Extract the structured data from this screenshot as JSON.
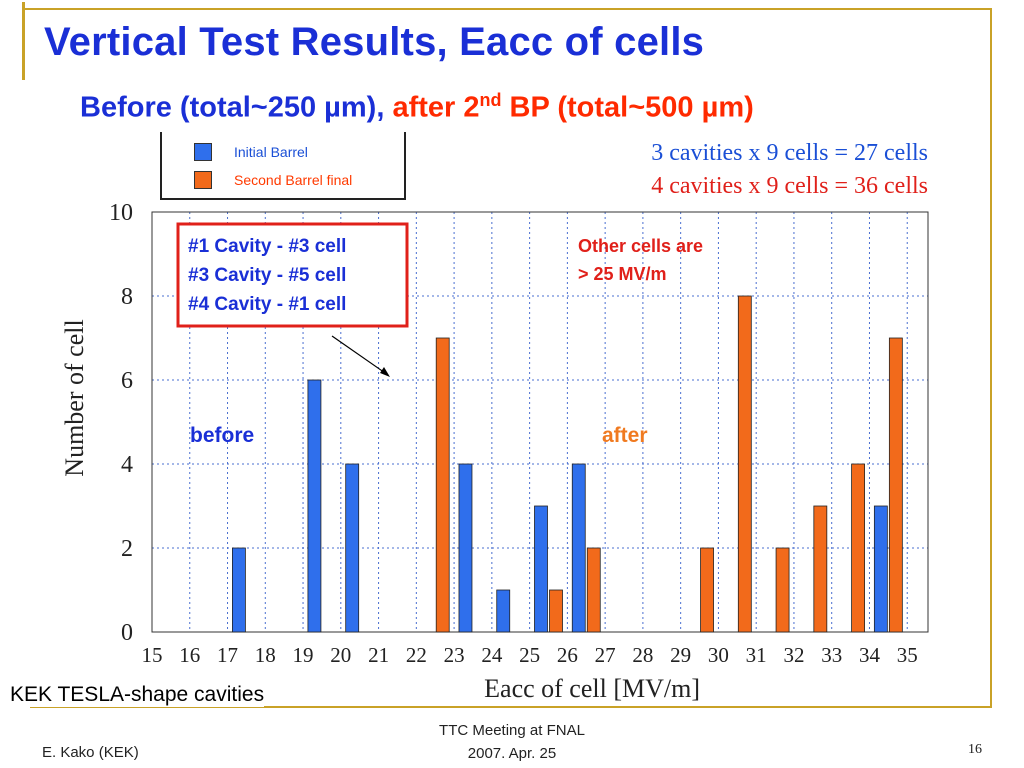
{
  "title": "Vertical Test Results,  Eacc of cells",
  "subtitle": {
    "part1": "Before (total~250 µm), ",
    "part2": "after 2",
    "sup": "nd",
    "part3": " BP (total~500 µm)"
  },
  "legend": [
    {
      "label": "Initial Barrel",
      "color": "#2f6fec"
    },
    {
      "label": "Second Barrel final",
      "color": "#f26a1b"
    }
  ],
  "notes": {
    "initial_count": "3 cavities x 9 cells = 27 cells",
    "second_count": "4 cavities x 9 cells = 36 cells",
    "callout_lines": [
      "#1 Cavity - #3 cell",
      "#3 Cavity - #5 cell",
      "#4 Cavity - #1 cell"
    ],
    "other_cells_line1": "Other cells are",
    "other_cells_line2": "> 25 MV/m",
    "before_label": "before",
    "after_label": "after"
  },
  "colors": {
    "title_blue": "#1a2fd6",
    "orange_red": "#ff2a00",
    "callout_red": "#e0201a",
    "after_orange": "#f07a20",
    "deco_gold": "#c9a227"
  },
  "chart_data": {
    "type": "bar",
    "categories": [
      "15",
      "16",
      "17",
      "18",
      "19",
      "20",
      "21",
      "22",
      "23",
      "24",
      "25",
      "26",
      "27",
      "28",
      "29",
      "30",
      "31",
      "32",
      "33",
      "34",
      "35"
    ],
    "series": [
      {
        "name": "Initial Barrel",
        "values": [
          0,
          0,
          2,
          0,
          6,
          4,
          0,
          0,
          4,
          1,
          3,
          4,
          0,
          0,
          0,
          0,
          0,
          0,
          0,
          3,
          0
        ]
      },
      {
        "name": "Second Barrel final",
        "values": [
          0,
          0,
          0,
          0,
          0,
          0,
          0,
          7,
          0,
          0,
          1,
          2,
          0,
          0,
          2,
          8,
          2,
          3,
          4,
          7,
          0
        ]
      }
    ],
    "yticks": [
      0,
      2,
      4,
      6,
      8,
      10
    ],
    "xlabel": "Eacc of cell [MV/m]",
    "ylabel": "Number of cell",
    "ylim": [
      0,
      10
    ],
    "grid": true,
    "legend_position": "top-left"
  },
  "footer": {
    "author": "E. Kako (KEK)",
    "meeting": "TTC Meeting at FNAL",
    "date": "2007. Apr. 25",
    "page": "16",
    "kek_label": "KEK TESLA-shape cavities"
  }
}
